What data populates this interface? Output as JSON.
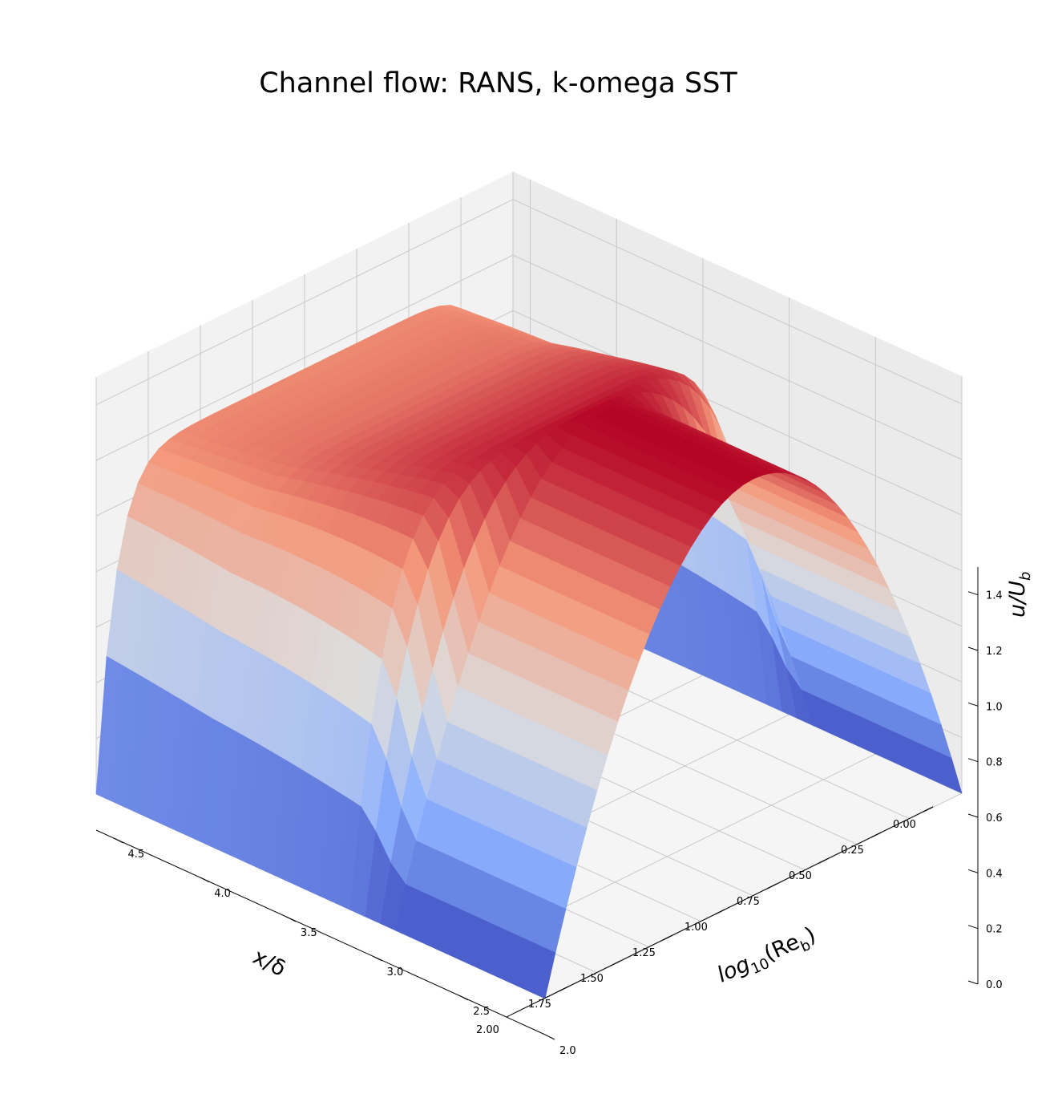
{
  "chart_data": {
    "type": "surface",
    "title": "Channel flow: RANS, k-omega SST",
    "xlabel": "x/δ",
    "ylabel_base": "log",
    "ylabel_sub": "10",
    "ylabel_paren": "(Re",
    "ylabel_paren_sub": "b",
    "ylabel_close": ")",
    "zlabel_base": "u/U",
    "zlabel_sub": "b",
    "xlim": [
      0,
      2
    ],
    "ylim": [
      2.0,
      4.6
    ],
    "zlim": [
      0,
      1.5
    ],
    "x_ticks": [
      "0.00",
      "0.25",
      "0.50",
      "0.75",
      "1.00",
      "1.25",
      "1.50",
      "1.75",
      "2.00"
    ],
    "y_ticks": [
      "2.0",
      "2.5",
      "3.0",
      "3.5",
      "4.0",
      "4.5"
    ],
    "z_ticks": [
      "0.0",
      "0.2",
      "0.4",
      "0.6",
      "0.8",
      "1.0",
      "1.2",
      "1.4"
    ],
    "colormap": "coolwarm",
    "colors": {
      "low": "#3b4cc0",
      "mid": "#dddddd",
      "high": "#b40426",
      "pane_left": "#f2f2f2",
      "pane_right": "#ebebeb",
      "floor": "#f5f5f5",
      "grid": "#c8c8c8"
    },
    "surface_samples": [
      {
        "log10_Re": 2.0,
        "centerline_u": 1.5
      },
      {
        "log10_Re": 2.9,
        "centerline_u": 1.5
      },
      {
        "log10_Re": 3.1,
        "centerline_u": 1.42
      },
      {
        "log10_Re": 3.5,
        "centerline_u": 1.33
      },
      {
        "log10_Re": 4.0,
        "centerline_u": 1.22
      },
      {
        "log10_Re": 4.6,
        "centerline_u": 1.16
      }
    ],
    "grid": true
  }
}
